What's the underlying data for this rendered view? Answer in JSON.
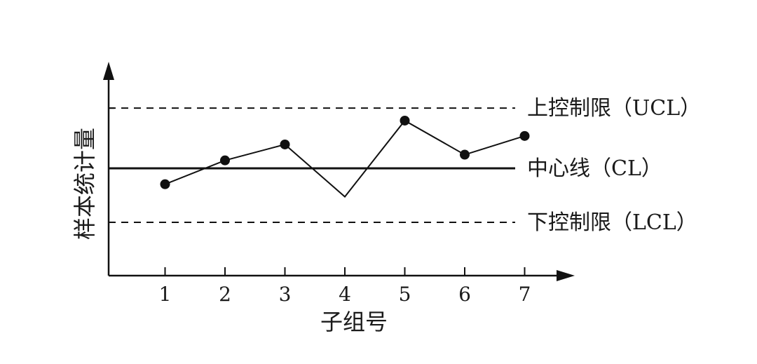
{
  "chart_data": {
    "type": "line",
    "title": "",
    "xlabel": "子组号",
    "ylabel": "样本统计量",
    "x": [
      1,
      2,
      3,
      4,
      5,
      6,
      7
    ],
    "series": [
      {
        "values": [
          -0.28,
          0.14,
          0.42,
          -0.5,
          0.84,
          0.24,
          0.57
        ],
        "marker_points": [
          1,
          2,
          3,
          5,
          6,
          7
        ]
      }
    ],
    "reference_lines": [
      {
        "label": "上控制限（UCL）",
        "value": 1.06,
        "style": "dashed"
      },
      {
        "label": "中心线（CL）",
        "value": 0,
        "style": "solid"
      },
      {
        "label": "下控制限（LCL）",
        "value": -0.95,
        "style": "dashed"
      }
    ],
    "xlim": [
      0,
      8
    ],
    "ylim": [
      -1.9,
      1.9
    ],
    "grid": false,
    "line_color": "#111111"
  }
}
